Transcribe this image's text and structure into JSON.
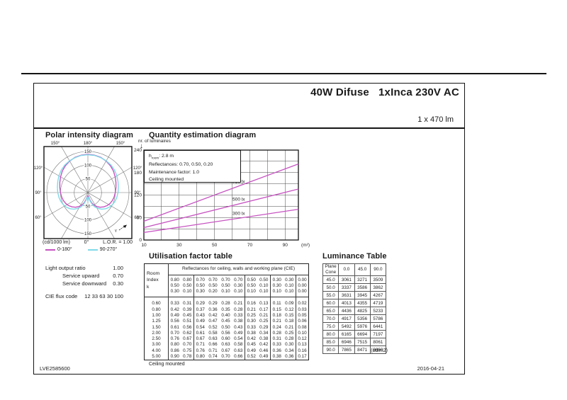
{
  "header": {
    "title": "40W Difuse   1xInca 230V AC",
    "lumen": "1 x 470 lm"
  },
  "footer": {
    "doc_id": "LVE2585600",
    "date": "2016-04-21"
  },
  "colors": {
    "magenta": "#c653c1",
    "cyan": "#7fd9e8",
    "ink": "#1a1a1a",
    "grid": "#777777"
  },
  "polar": {
    "title": "Polar intensity diagram",
    "unit": "(cd/1000 lm)",
    "zero": "0°",
    "lor": "L.O.R. = 1.00",
    "gamma_label": "γ",
    "ring_values": [
      50,
      100,
      150
    ],
    "angle_top": [
      "150°",
      "180°",
      "150°"
    ],
    "angle_sides": [
      "120°",
      "90°",
      "60°"
    ],
    "legend": [
      {
        "label": "0-180°",
        "color_key": "magenta"
      },
      {
        "label": "90-270°",
        "color_key": "cyan"
      }
    ],
    "curves": [
      {
        "name": "0-180",
        "color_key": "magenta",
        "points": [
          [
            0,
            28
          ],
          [
            2,
            17
          ],
          [
            5,
            12
          ],
          [
            9,
            14
          ],
          [
            14,
            25
          ],
          [
            20,
            40
          ],
          [
            26,
            51
          ],
          [
            33,
            61
          ],
          [
            40,
            70
          ],
          [
            48,
            78
          ],
          [
            56,
            85
          ],
          [
            64,
            90
          ],
          [
            72,
            94
          ],
          [
            80,
            97
          ],
          [
            90,
            100
          ],
          [
            100,
            104
          ],
          [
            110,
            109
          ],
          [
            120,
            115
          ],
          [
            130,
            122
          ],
          [
            140,
            128
          ],
          [
            150,
            133
          ],
          [
            160,
            137
          ],
          [
            170,
            139
          ],
          [
            180,
            140
          ]
        ]
      },
      {
        "name": "90-270",
        "color_key": "cyan",
        "points": [
          [
            0,
            32
          ],
          [
            2,
            21
          ],
          [
            5,
            16
          ],
          [
            9,
            18
          ],
          [
            14,
            30
          ],
          [
            20,
            46
          ],
          [
            26,
            58
          ],
          [
            33,
            69
          ],
          [
            40,
            79
          ],
          [
            48,
            88
          ],
          [
            56,
            95
          ],
          [
            64,
            100
          ],
          [
            72,
            104
          ],
          [
            80,
            107
          ],
          [
            90,
            110
          ],
          [
            100,
            113
          ],
          [
            110,
            117
          ],
          [
            120,
            122
          ],
          [
            130,
            127
          ],
          [
            140,
            131
          ],
          [
            150,
            134
          ],
          [
            160,
            136
          ],
          [
            170,
            138
          ],
          [
            180,
            138
          ]
        ]
      }
    ]
  },
  "quantity": {
    "title": "Quantity estimation diagram",
    "ylabel": "nr. of luminaires",
    "y_arrow": "↓",
    "annotations": [
      [
        "h",
        "room",
        ": 2.8 m"
      ],
      [
        "Reflectances: 0.70, 0.50, 0.20"
      ],
      [
        "Maintenance factor: 1.0"
      ],
      [
        "Ceiling mounted"
      ]
    ],
    "x_ticks": [
      10,
      30,
      50,
      70,
      90
    ],
    "x_unit": "(m²)",
    "y_ticks": [
      0,
      60,
      120,
      180,
      240
    ],
    "x_range": [
      10,
      97.5
    ],
    "y_range": [
      0,
      240
    ],
    "x_grid_step": 10,
    "y_grid_step": 30,
    "lines": [
      {
        "label": "750 lx",
        "points": [
          [
            10,
            50
          ],
          [
            97.5,
            203
          ]
        ]
      },
      {
        "label": "500 lx",
        "points": [
          [
            10,
            33
          ],
          [
            97.5,
            136
          ]
        ]
      },
      {
        "label": "300 lx",
        "points": [
          [
            10,
            20
          ],
          [
            97.5,
            82
          ]
        ]
      }
    ]
  },
  "utilisation": {
    "title": "Utilisation factor table",
    "header": "Reflectances for ceiling, walls and working plane (CIE)",
    "row_header": [
      "Room",
      "Index",
      "k"
    ],
    "columns": [
      [
        "0.80",
        "0.50",
        "0.30"
      ],
      [
        "0.80",
        "0.50",
        "0.10"
      ],
      [
        "0.70",
        "0.50",
        "0.30"
      ],
      [
        "0.70",
        "0.50",
        "0.20"
      ],
      [
        "0.70",
        "0.50",
        "0.10"
      ],
      [
        "0.70",
        "0.30",
        "0.10"
      ],
      [
        "0.50",
        "0.50",
        "0.10"
      ],
      [
        "0.50",
        "0.10",
        "0.10"
      ],
      [
        "0.30",
        "0.30",
        "0.10"
      ],
      [
        "0.30",
        "0.10",
        "0.10"
      ],
      [
        "0.00",
        "0.00",
        "0.00"
      ]
    ],
    "group_ends": [
      1,
      5,
      7,
      9
    ],
    "rows": [
      {
        "k": "0.60",
        "values": [
          "0.33",
          "0.31",
          "0.29",
          "0.29",
          "0.28",
          "0.21",
          "0.16",
          "0.13",
          "0.11",
          "0.09",
          "0.02"
        ]
      },
      {
        "k": "0.80",
        "values": [
          "0.42",
          "0.39",
          "0.37",
          "0.36",
          "0.35",
          "0.28",
          "0.21",
          "0.17",
          "0.15",
          "0.12",
          "0.03"
        ]
      },
      {
        "k": "1.00",
        "values": [
          "0.49",
          "0.45",
          "0.43",
          "0.42",
          "0.40",
          "0.33",
          "0.25",
          "0.21",
          "0.18",
          "0.15",
          "0.05"
        ]
      },
      {
        "k": "1.25",
        "values": [
          "0.56",
          "0.51",
          "0.49",
          "0.47",
          "0.45",
          "0.38",
          "0.30",
          "0.25",
          "0.21",
          "0.18",
          "0.06"
        ]
      },
      {
        "k": "1.50",
        "values": [
          "0.61",
          "0.56",
          "0.54",
          "0.52",
          "0.50",
          "0.43",
          "0.33",
          "0.29",
          "0.24",
          "0.21",
          "0.08"
        ]
      },
      {
        "k": "2.00",
        "values": [
          "0.70",
          "0.62",
          "0.61",
          "0.58",
          "0.56",
          "0.49",
          "0.38",
          "0.34",
          "0.28",
          "0.25",
          "0.10"
        ]
      },
      {
        "k": "2.50",
        "values": [
          "0.76",
          "0.67",
          "0.67",
          "0.63",
          "0.60",
          "0.54",
          "0.42",
          "0.38",
          "0.31",
          "0.28",
          "0.12"
        ]
      },
      {
        "k": "3.00",
        "values": [
          "0.80",
          "0.70",
          "0.71",
          "0.66",
          "0.63",
          "0.58",
          "0.45",
          "0.42",
          "0.33",
          "0.30",
          "0.13"
        ]
      },
      {
        "k": "4.00",
        "values": [
          "0.86",
          "0.75",
          "0.76",
          "0.71",
          "0.67",
          "0.63",
          "0.49",
          "0.46",
          "0.36",
          "0.34",
          "0.16"
        ]
      },
      {
        "k": "5.00",
        "values": [
          "0.90",
          "0.78",
          "0.80",
          "0.74",
          "0.70",
          "0.66",
          "0.52",
          "0.49",
          "0.38",
          "0.36",
          "0.17"
        ]
      }
    ],
    "note": "Ceiling mounted"
  },
  "luminance": {
    "title": "Luminance Table",
    "corner": [
      "Plane",
      "Cone"
    ],
    "col_headers": [
      "0.0",
      "45.0",
      "90.0"
    ],
    "rows": [
      {
        "angle": "45.0",
        "values": [
          "3061",
          "3271",
          "3509"
        ]
      },
      {
        "angle": "50.0",
        "values": [
          "3337",
          "3586",
          "3862"
        ]
      },
      {
        "angle": "55.0",
        "values": [
          "3631",
          "3945",
          "4267"
        ]
      },
      {
        "angle": "60.0",
        "values": [
          "4013",
          "4355",
          "4719"
        ]
      },
      {
        "angle": "65.0",
        "values": [
          "4436",
          "4825",
          "5233"
        ]
      },
      {
        "angle": "70.0",
        "values": [
          "4917",
          "5356",
          "5786"
        ]
      },
      {
        "angle": "75.0",
        "values": [
          "5492",
          "5976",
          "6441"
        ]
      },
      {
        "angle": "80.0",
        "values": [
          "6165",
          "6694",
          "7197"
        ]
      },
      {
        "angle": "85.0",
        "values": [
          "6946",
          "7515",
          "8061"
        ]
      },
      {
        "angle": "90.0",
        "values": [
          "7865",
          "8471",
          "9060"
        ]
      }
    ],
    "unit": "(cd/m2)"
  },
  "photometrics": {
    "rows": [
      {
        "label": "Light output ratio",
        "value": "1.00",
        "indent": false
      },
      {
        "label": "Service upward",
        "value": "0.70",
        "indent": true
      },
      {
        "label": "Service downward",
        "value": "0.30",
        "indent": true
      }
    ],
    "flux_label": "CIE flux code",
    "flux_value": "12 33 63 30 100"
  }
}
